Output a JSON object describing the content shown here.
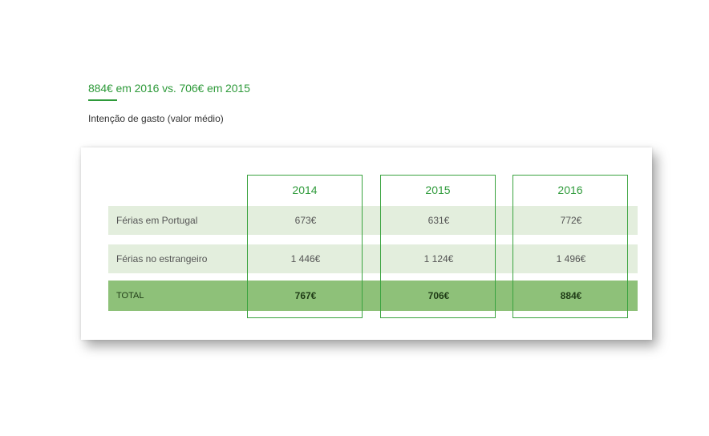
{
  "headline": "884€ em 2016 vs. 706€ em 2015",
  "subtitle": "Intenção de gasto (valor médio)",
  "table": {
    "columns": [
      "2014",
      "2015",
      "2016"
    ],
    "rows": [
      {
        "label": "Férias em Portugal",
        "values": [
          "673€",
          "631€",
          "772€"
        ]
      },
      {
        "label": "Férias no estrangeiro",
        "values": [
          "1 446€",
          "1 124€",
          "1 496€"
        ]
      },
      {
        "label": "TOTAL",
        "values": [
          "767€",
          "706€",
          "884€"
        ]
      }
    ]
  },
  "colors": {
    "accent": "#2e9a3a",
    "row_light": "#e3eedd",
    "row_total": "#8ec179"
  }
}
